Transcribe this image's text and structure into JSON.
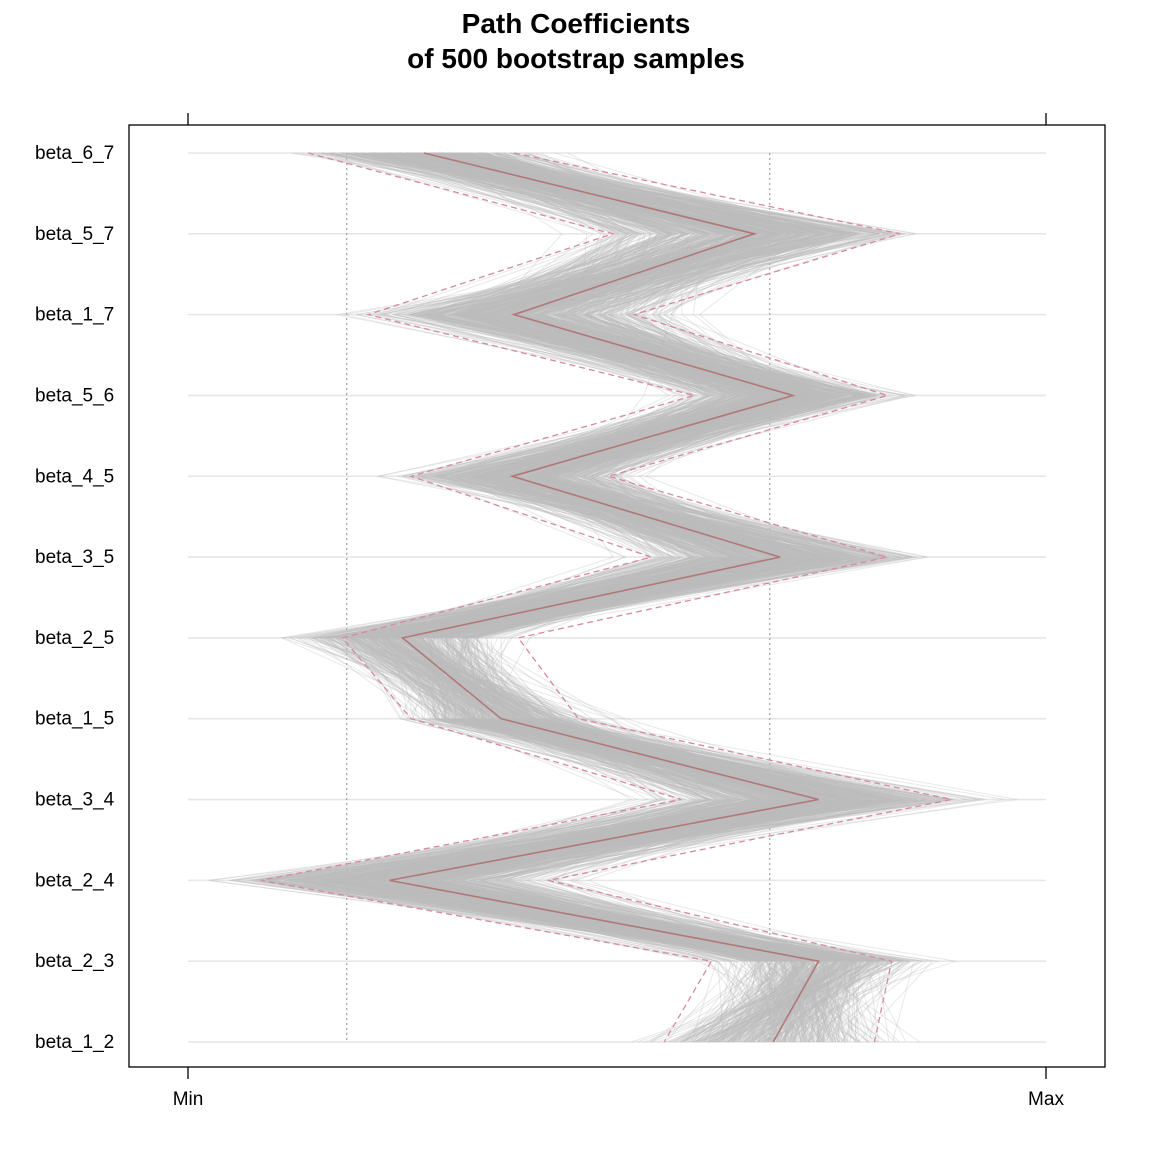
{
  "chart_data": {
    "type": "parallel-coordinates",
    "title": "Path Coefficients",
    "subtitle": "of 500 bootstrap samples",
    "axis_ticks": [
      "Min",
      "Max"
    ],
    "variables": [
      "beta_6_7",
      "beta_5_7",
      "beta_1_7",
      "beta_5_6",
      "beta_4_5",
      "beta_3_5",
      "beta_2_5",
      "beta_1_5",
      "beta_3_4",
      "beta_2_4",
      "beta_2_3",
      "beta_1_2"
    ],
    "n_samples": 500,
    "reference_lines": [
      0.185,
      0.678
    ],
    "estimate": [
      0.275,
      0.66,
      0.38,
      0.705,
      0.378,
      0.69,
      0.25,
      0.365,
      0.735,
      0.235,
      0.735,
      0.682
    ],
    "lower_bound": [
      0.14,
      0.495,
      0.21,
      0.59,
      0.26,
      0.54,
      0.18,
      0.26,
      0.575,
      0.085,
      0.61,
      0.555
    ],
    "upper_bound": [
      0.38,
      0.83,
      0.52,
      0.815,
      0.49,
      0.815,
      0.385,
      0.455,
      0.89,
      0.42,
      0.82,
      0.8
    ],
    "colors": {
      "sample_lines": "#bebebe",
      "estimate": "#b07878",
      "bounds": "#d68a9e",
      "grid": "#e6e6e6",
      "reference": "#a0a0a0",
      "frame": "#000000"
    },
    "grid": true
  }
}
